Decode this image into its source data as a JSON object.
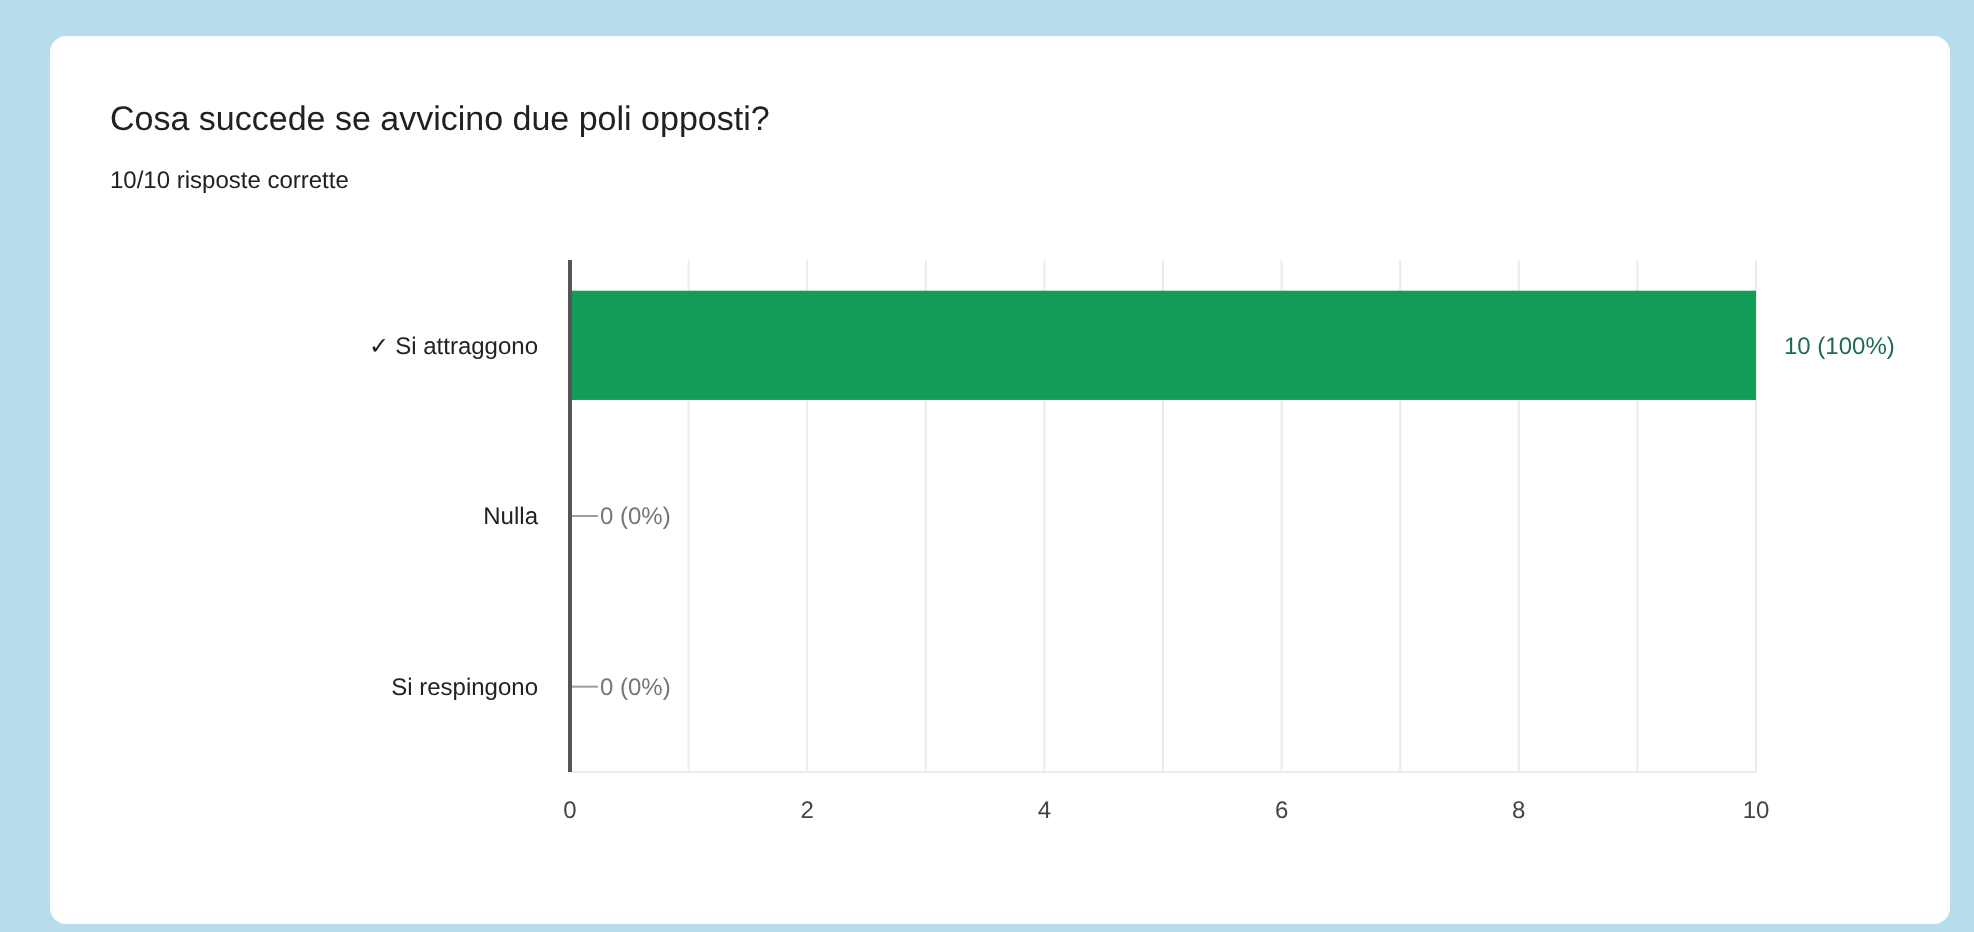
{
  "chart_data": {
    "type": "bar",
    "orientation": "horizontal",
    "title": "Cosa succede se avvicino due poli opposti?",
    "subtitle": "10/10 risposte corrette",
    "categories": [
      "✓ Si attraggono",
      "Nulla",
      "Si respingono"
    ],
    "values": [
      10,
      0,
      0
    ],
    "color": "#129c57",
    "value_labels": [
      "10 (100%)",
      "0 (0%)",
      "0 (0%)"
    ],
    "xlim": [
      0,
      10
    ],
    "xticks": [
      0,
      {
        "value": 1,
        "label": null
      },
      2,
      {
        "value": 3,
        "label": null
      },
      4,
      {
        "value": 5,
        "label": null
      },
      6,
      {
        "value": 7,
        "label": null
      },
      8,
      {
        "value": 9,
        "label": null
      },
      10
    ],
    "grid": "x"
  }
}
